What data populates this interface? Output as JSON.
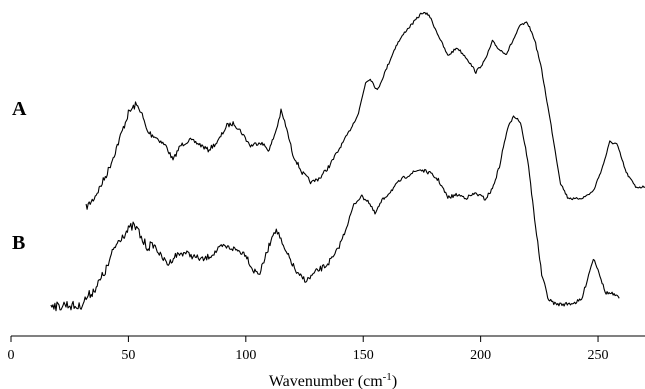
{
  "chart_data": {
    "type": "line",
    "title": "",
    "xlabel": "Wavenumber (cm",
    "xlabel_superscript": "-1",
    "xlabel_suffix": ")",
    "ylabel": "",
    "xlim": [
      0,
      270
    ],
    "x_ticks": [
      0,
      50,
      100,
      150,
      200,
      250
    ],
    "x_tick_labels": [
      "0",
      "50",
      "100",
      "150",
      "200",
      "250"
    ],
    "y_axis": "none",
    "grid": false,
    "series": [
      {
        "name": "A",
        "x": [
          32,
          35,
          38,
          41,
          44,
          47,
          50,
          53,
          55,
          58,
          62,
          66,
          69,
          72,
          76,
          80,
          84,
          88,
          92,
          95,
          98,
          102,
          106,
          110,
          113,
          115,
          117,
          120,
          124,
          128,
          132,
          136,
          140,
          144,
          148,
          151,
          153,
          156,
          160,
          164,
          168,
          172,
          175,
          178,
          182,
          186,
          190,
          194,
          198,
          202,
          205,
          208,
          211,
          214,
          217,
          220,
          223,
          226,
          230,
          234,
          237,
          240,
          244,
          248,
          252,
          255,
          258,
          262,
          266,
          270
        ],
        "y": [
          0.1,
          0.14,
          0.2,
          0.27,
          0.36,
          0.46,
          0.56,
          0.6,
          0.58,
          0.47,
          0.44,
          0.4,
          0.33,
          0.4,
          0.43,
          0.41,
          0.38,
          0.42,
          0.5,
          0.51,
          0.47,
          0.4,
          0.42,
          0.38,
          0.48,
          0.57,
          0.5,
          0.36,
          0.27,
          0.22,
          0.25,
          0.31,
          0.39,
          0.47,
          0.56,
          0.71,
          0.73,
          0.67,
          0.78,
          0.89,
          0.96,
          1.01,
          1.05,
          1.04,
          0.94,
          0.84,
          0.88,
          0.83,
          0.76,
          0.82,
          0.91,
          0.87,
          0.85,
          0.92,
          0.99,
          1.0,
          0.92,
          0.77,
          0.5,
          0.22,
          0.15,
          0.14,
          0.15,
          0.18,
          0.3,
          0.42,
          0.41,
          0.27,
          0.2,
          0.2
        ]
      },
      {
        "name": "B",
        "x": [
          17,
          20,
          23,
          26,
          29,
          32,
          35,
          38,
          41,
          44,
          47,
          50,
          52,
          54,
          56,
          58,
          61,
          64,
          67,
          70,
          74,
          78,
          82,
          86,
          90,
          94,
          97,
          100,
          103,
          106,
          109,
          112,
          114,
          116,
          119,
          122,
          126,
          130,
          134,
          138,
          142,
          146,
          149,
          152,
          155,
          158,
          162,
          166,
          170,
          174,
          178,
          182,
          186,
          190,
          194,
          198,
          202,
          205,
          208,
          211,
          214,
          217,
          220,
          223,
          226,
          229,
          232,
          236,
          240,
          243,
          246,
          248,
          250,
          253,
          256,
          259
        ],
        "y": [
          0.13,
          0.1,
          0.12,
          0.11,
          0.1,
          0.16,
          0.21,
          0.28,
          0.37,
          0.5,
          0.58,
          0.62,
          0.65,
          0.62,
          0.55,
          0.51,
          0.52,
          0.44,
          0.39,
          0.45,
          0.47,
          0.44,
          0.42,
          0.46,
          0.51,
          0.5,
          0.48,
          0.46,
          0.35,
          0.33,
          0.47,
          0.62,
          0.6,
          0.5,
          0.42,
          0.32,
          0.28,
          0.34,
          0.38,
          0.45,
          0.6,
          0.79,
          0.85,
          0.82,
          0.73,
          0.82,
          0.89,
          0.96,
          1.0,
          1.03,
          1.01,
          0.96,
          0.84,
          0.86,
          0.84,
          0.87,
          0.83,
          0.9,
          1.05,
          1.28,
          1.4,
          1.35,
          1.1,
          0.7,
          0.32,
          0.15,
          0.12,
          0.12,
          0.13,
          0.15,
          0.32,
          0.43,
          0.36,
          0.2,
          0.19,
          0.16
        ]
      }
    ]
  }
}
